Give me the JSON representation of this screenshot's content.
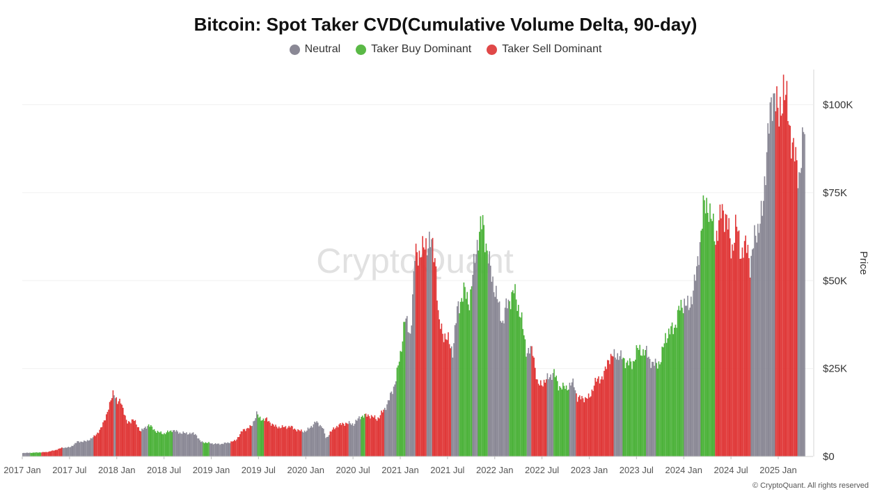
{
  "chart_data": {
    "type": "bar",
    "title": "Bitcoin: Spot Taker CVD(Cumulative Volume Delta, 90-day)",
    "ylabel": "Price",
    "ylim": [
      0,
      110000
    ],
    "y_ticks": [
      "$0",
      "$25K",
      "$50K",
      "$75K",
      "$100K"
    ],
    "y_tick_values": [
      0,
      25000,
      50000,
      75000,
      100000
    ],
    "x_ticks": [
      "2017 Jan",
      "2017 Jul",
      "2018 Jan",
      "2018 Jul",
      "2019 Jan",
      "2019 Jul",
      "2020 Jan",
      "2020 Jul",
      "2021 Jan",
      "2021 Jul",
      "2022 Jan",
      "2022 Jul",
      "2023 Jan",
      "2023 Jul",
      "2024 Jan",
      "2024 Jul",
      "2025 Jan"
    ],
    "x_tick_values": [
      2017.0,
      2017.5,
      2018.0,
      2018.5,
      2019.0,
      2019.5,
      2020.0,
      2020.5,
      2021.0,
      2021.5,
      2022.0,
      2022.5,
      2023.0,
      2023.5,
      2024.0,
      2024.5,
      2025.0
    ],
    "xlim": [
      2017.0,
      2025.28
    ],
    "legend": {
      "position": "top-center",
      "items": [
        {
          "key": "neutral",
          "name": "Neutral",
          "color": "#8a8895"
        },
        {
          "key": "buy",
          "name": "Taker Buy Dominant",
          "color": "#5ab946"
        },
        {
          "key": "sell",
          "name": "Taker Sell Dominant",
          "color": "#e04848"
        }
      ]
    },
    "colors": {
      "neutral": "#8a8895",
      "buy": "#4cb23a",
      "sell": "#e03838"
    },
    "price": [
      [
        2017.0,
        1000
      ],
      [
        2017.08,
        1050
      ],
      [
        2017.17,
        1150
      ],
      [
        2017.25,
        1250
      ],
      [
        2017.33,
        1700
      ],
      [
        2017.42,
        2500
      ],
      [
        2017.5,
        2600
      ],
      [
        2017.58,
        4200
      ],
      [
        2017.67,
        4300
      ],
      [
        2017.75,
        5500
      ],
      [
        2017.83,
        8000
      ],
      [
        2017.92,
        14500
      ],
      [
        2017.96,
        19000
      ],
      [
        2018.0,
        15000
      ],
      [
        2018.04,
        16000
      ],
      [
        2018.1,
        9500
      ],
      [
        2018.17,
        10500
      ],
      [
        2018.25,
        7200
      ],
      [
        2018.33,
        9000
      ],
      [
        2018.42,
        7000
      ],
      [
        2018.5,
        6500
      ],
      [
        2018.58,
        7500
      ],
      [
        2018.67,
        6700
      ],
      [
        2018.75,
        6600
      ],
      [
        2018.83,
        6400
      ],
      [
        2018.88,
        4200
      ],
      [
        2019.0,
        3700
      ],
      [
        2019.08,
        3500
      ],
      [
        2019.17,
        3900
      ],
      [
        2019.25,
        4500
      ],
      [
        2019.33,
        7500
      ],
      [
        2019.42,
        8500
      ],
      [
        2019.48,
        12500
      ],
      [
        2019.5,
        10800
      ],
      [
        2019.58,
        10500
      ],
      [
        2019.67,
        8500
      ],
      [
        2019.75,
        8300
      ],
      [
        2019.83,
        8500
      ],
      [
        2019.92,
        7300
      ],
      [
        2020.0,
        7200
      ],
      [
        2020.1,
        9800
      ],
      [
        2020.17,
        8500
      ],
      [
        2020.21,
        5000
      ],
      [
        2020.25,
        6800
      ],
      [
        2020.33,
        8800
      ],
      [
        2020.42,
        9500
      ],
      [
        2020.5,
        9200
      ],
      [
        2020.58,
        11500
      ],
      [
        2020.67,
        11700
      ],
      [
        2020.75,
        10600
      ],
      [
        2020.83,
        13500
      ],
      [
        2020.92,
        19000
      ],
      [
        2021.0,
        29000
      ],
      [
        2021.04,
        40000
      ],
      [
        2021.1,
        34000
      ],
      [
        2021.15,
        57000
      ],
      [
        2021.25,
        59000
      ],
      [
        2021.3,
        62000
      ],
      [
        2021.37,
        56000
      ],
      [
        2021.4,
        38000
      ],
      [
        2021.45,
        35000
      ],
      [
        2021.5,
        33000
      ],
      [
        2021.55,
        30000
      ],
      [
        2021.6,
        42000
      ],
      [
        2021.67,
        47000
      ],
      [
        2021.73,
        44000
      ],
      [
        2021.8,
        60000
      ],
      [
        2021.87,
        67000
      ],
      [
        2021.92,
        57000
      ],
      [
        2022.0,
        47000
      ],
      [
        2022.08,
        38000
      ],
      [
        2022.12,
        43000
      ],
      [
        2022.2,
        47000
      ],
      [
        2022.27,
        40000
      ],
      [
        2022.33,
        30000
      ],
      [
        2022.4,
        30000
      ],
      [
        2022.45,
        20000
      ],
      [
        2022.55,
        22000
      ],
      [
        2022.62,
        24000
      ],
      [
        2022.67,
        20000
      ],
      [
        2022.75,
        19500
      ],
      [
        2022.83,
        21000
      ],
      [
        2022.87,
        16500
      ],
      [
        2023.0,
        16700
      ],
      [
        2023.05,
        21000
      ],
      [
        2023.15,
        23000
      ],
      [
        2023.2,
        28000
      ],
      [
        2023.3,
        29000
      ],
      [
        2023.38,
        27000
      ],
      [
        2023.45,
        26000
      ],
      [
        2023.5,
        30500
      ],
      [
        2023.6,
        29500
      ],
      [
        2023.67,
        26000
      ],
      [
        2023.75,
        27000
      ],
      [
        2023.8,
        34000
      ],
      [
        2023.9,
        37000
      ],
      [
        2023.95,
        42000
      ],
      [
        2024.0,
        44000
      ],
      [
        2024.05,
        42000
      ],
      [
        2024.13,
        52000
      ],
      [
        2024.2,
        70000
      ],
      [
        2024.25,
        72000
      ],
      [
        2024.33,
        62000
      ],
      [
        2024.4,
        70000
      ],
      [
        2024.45,
        68000
      ],
      [
        2024.5,
        58000
      ],
      [
        2024.55,
        66000
      ],
      [
        2024.6,
        58000
      ],
      [
        2024.67,
        60000
      ],
      [
        2024.7,
        54000
      ],
      [
        2024.75,
        63000
      ],
      [
        2024.83,
        69000
      ],
      [
        2024.88,
        91000
      ],
      [
        2024.92,
        98000
      ],
      [
        2024.96,
        106000
      ],
      [
        2025.0,
        94000
      ],
      [
        2025.05,
        106000
      ],
      [
        2025.1,
        97000
      ],
      [
        2025.16,
        86000
      ],
      [
        2025.22,
        80000
      ],
      [
        2025.28,
        95000
      ]
    ],
    "regimes": [
      {
        "from": 2017.0,
        "to": 2017.08,
        "state": "neutral"
      },
      {
        "from": 2017.08,
        "to": 2017.2,
        "state": "buy"
      },
      {
        "from": 2017.2,
        "to": 2017.42,
        "state": "sell"
      },
      {
        "from": 2017.42,
        "to": 2017.75,
        "state": "neutral"
      },
      {
        "from": 2017.75,
        "to": 2017.96,
        "state": "sell"
      },
      {
        "from": 2017.96,
        "to": 2017.99,
        "state": "neutral"
      },
      {
        "from": 2017.99,
        "to": 2018.25,
        "state": "sell"
      },
      {
        "from": 2018.25,
        "to": 2018.33,
        "state": "neutral"
      },
      {
        "from": 2018.33,
        "to": 2018.58,
        "state": "buy"
      },
      {
        "from": 2018.58,
        "to": 2018.9,
        "state": "neutral"
      },
      {
        "from": 2018.9,
        "to": 2018.97,
        "state": "buy"
      },
      {
        "from": 2018.97,
        "to": 2019.2,
        "state": "neutral"
      },
      {
        "from": 2019.2,
        "to": 2019.42,
        "state": "sell"
      },
      {
        "from": 2019.42,
        "to": 2019.48,
        "state": "neutral"
      },
      {
        "from": 2019.48,
        "to": 2019.55,
        "state": "buy"
      },
      {
        "from": 2019.55,
        "to": 2019.95,
        "state": "sell"
      },
      {
        "from": 2019.95,
        "to": 2020.25,
        "state": "neutral"
      },
      {
        "from": 2020.25,
        "to": 2020.45,
        "state": "sell"
      },
      {
        "from": 2020.45,
        "to": 2020.58,
        "state": "neutral"
      },
      {
        "from": 2020.58,
        "to": 2020.63,
        "state": "buy"
      },
      {
        "from": 2020.63,
        "to": 2020.83,
        "state": "sell"
      },
      {
        "from": 2020.83,
        "to": 2020.95,
        "state": "neutral"
      },
      {
        "from": 2020.95,
        "to": 2021.05,
        "state": "buy"
      },
      {
        "from": 2021.05,
        "to": 2021.15,
        "state": "neutral"
      },
      {
        "from": 2021.15,
        "to": 2021.27,
        "state": "sell"
      },
      {
        "from": 2021.27,
        "to": 2021.33,
        "state": "neutral"
      },
      {
        "from": 2021.33,
        "to": 2021.53,
        "state": "sell"
      },
      {
        "from": 2021.53,
        "to": 2021.62,
        "state": "neutral"
      },
      {
        "from": 2021.62,
        "to": 2021.75,
        "state": "buy"
      },
      {
        "from": 2021.75,
        "to": 2021.82,
        "state": "neutral"
      },
      {
        "from": 2021.82,
        "to": 2021.92,
        "state": "buy"
      },
      {
        "from": 2021.92,
        "to": 2022.15,
        "state": "neutral"
      },
      {
        "from": 2022.15,
        "to": 2022.33,
        "state": "buy"
      },
      {
        "from": 2022.33,
        "to": 2022.38,
        "state": "neutral"
      },
      {
        "from": 2022.38,
        "to": 2022.55,
        "state": "sell"
      },
      {
        "from": 2022.55,
        "to": 2022.62,
        "state": "neutral"
      },
      {
        "from": 2022.62,
        "to": 2022.78,
        "state": "buy"
      },
      {
        "from": 2022.78,
        "to": 2022.85,
        "state": "neutral"
      },
      {
        "from": 2022.85,
        "to": 2023.25,
        "state": "sell"
      },
      {
        "from": 2023.25,
        "to": 2023.35,
        "state": "neutral"
      },
      {
        "from": 2023.35,
        "to": 2023.6,
        "state": "buy"
      },
      {
        "from": 2023.6,
        "to": 2023.7,
        "state": "neutral"
      },
      {
        "from": 2023.7,
        "to": 2024.0,
        "state": "buy"
      },
      {
        "from": 2024.0,
        "to": 2024.17,
        "state": "neutral"
      },
      {
        "from": 2024.17,
        "to": 2024.33,
        "state": "buy"
      },
      {
        "from": 2024.33,
        "to": 2024.7,
        "state": "sell"
      },
      {
        "from": 2024.7,
        "to": 2024.96,
        "state": "neutral"
      },
      {
        "from": 2024.96,
        "to": 2025.2,
        "state": "sell"
      },
      {
        "from": 2025.2,
        "to": 2025.28,
        "state": "neutral"
      }
    ]
  },
  "watermark": "CryptoQuant",
  "copyright": "© CryptoQuant. All rights reserved"
}
